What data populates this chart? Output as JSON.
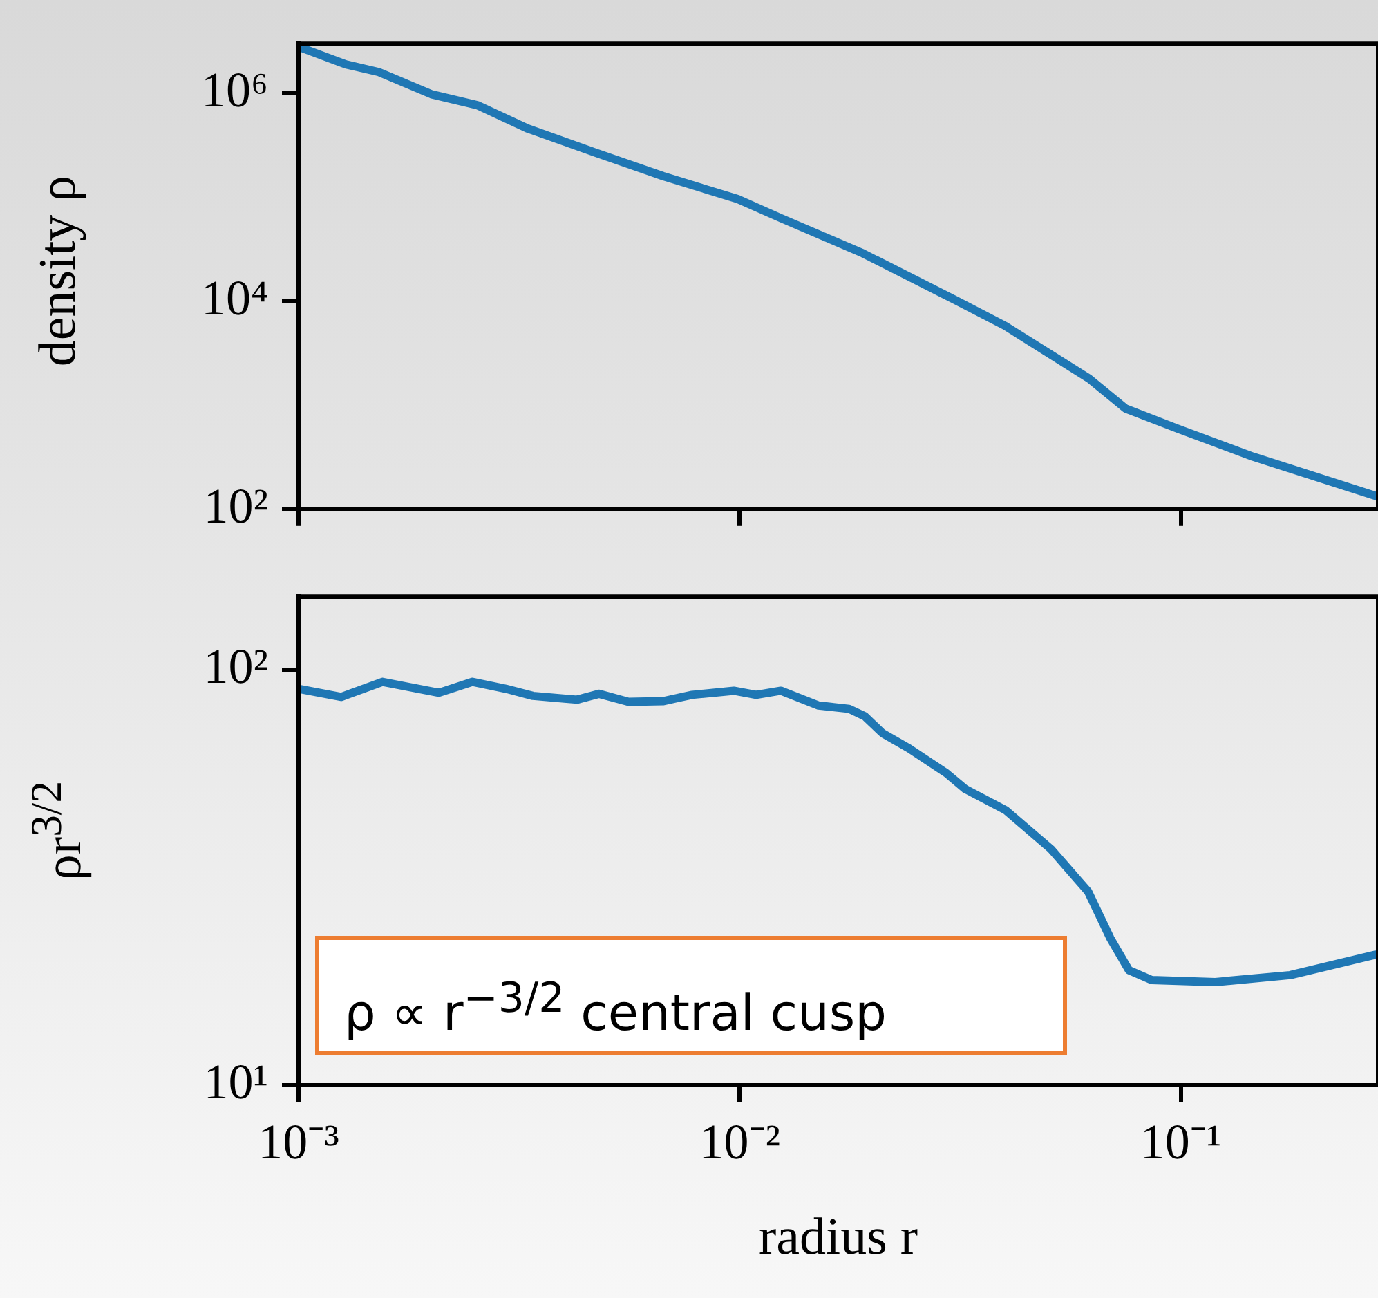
{
  "chart_data": [
    {
      "type": "line",
      "ylabel": "density ρ",
      "log": "xy",
      "tick_labels": "y",
      "x": [
        0.001,
        0.00128,
        0.00152,
        0.002,
        0.00254,
        0.0033,
        0.0047,
        0.0067,
        0.0099,
        0.0124,
        0.019,
        0.0305,
        0.04,
        0.062,
        0.075,
        0.098,
        0.146,
        0.276
      ],
      "series": [
        {
          "color": "#1f77b4",
          "values": [
            2800000,
            1900000,
            1600000,
            980000,
            770000,
            460000,
            270000,
            160000,
            96000,
            63000,
            29000,
            10500,
            5800,
            1800,
            930,
            600,
            320,
            135
          ]
        }
      ],
      "xlim": [
        0.001,
        0.28
      ],
      "ylim": [
        100,
        3000000
      ],
      "xticks": [
        {
          "value": 0.001,
          "label": null
        },
        {
          "value": 0.01,
          "label": null
        },
        {
          "value": 0.1,
          "label": null
        }
      ],
      "yticks": [
        {
          "value": 100,
          "label": "10²"
        },
        {
          "value": 10000,
          "label": "10⁴"
        },
        {
          "value": 1000000,
          "label": "10⁶"
        }
      ]
    },
    {
      "type": "line",
      "xlabel": "radius r",
      "ylabel": "ρr$^{3/2}$",
      "log": "xy",
      "x": [
        0.001,
        0.00125,
        0.00155,
        0.00208,
        0.00248,
        0.00295,
        0.0034,
        0.00428,
        0.0048,
        0.0056,
        0.0067,
        0.0078,
        0.0097,
        0.0109,
        0.0124,
        0.0151,
        0.0177,
        0.0192,
        0.0211,
        0.0242,
        0.0294,
        0.0324,
        0.0401,
        0.0508,
        0.0617,
        0.0692,
        0.0763,
        0.0859,
        0.1197,
        0.177,
        0.276
      ],
      "series": [
        {
          "color": "#1f77b4",
          "values": [
            90,
            86,
            93.5,
            88,
            93.5,
            90,
            86.5,
            84.7,
            87.5,
            83.7,
            84,
            87,
            89,
            87,
            89,
            82,
            80.5,
            77.3,
            70.3,
            64.7,
            56.4,
            51.7,
            45.9,
            37,
            29.2,
            22.6,
            18.9,
            17.9,
            17.7,
            18.4,
            20.6
          ]
        }
      ],
      "xlim": [
        0.001,
        0.28
      ],
      "ylim": [
        10,
        150
      ],
      "xticks": [
        {
          "value": 0.001,
          "label": "10⁻³"
        },
        {
          "value": 0.01,
          "label": "10⁻²"
        },
        {
          "value": 0.1,
          "label": "10⁻¹"
        }
      ],
      "yticks": [
        {
          "value": 10,
          "label": "10¹"
        },
        {
          "value": 100,
          "label": "10²"
        }
      ],
      "annotations": [
        "ρ ∝ r$^{−3/2}$ central cusp"
      ]
    }
  ]
}
